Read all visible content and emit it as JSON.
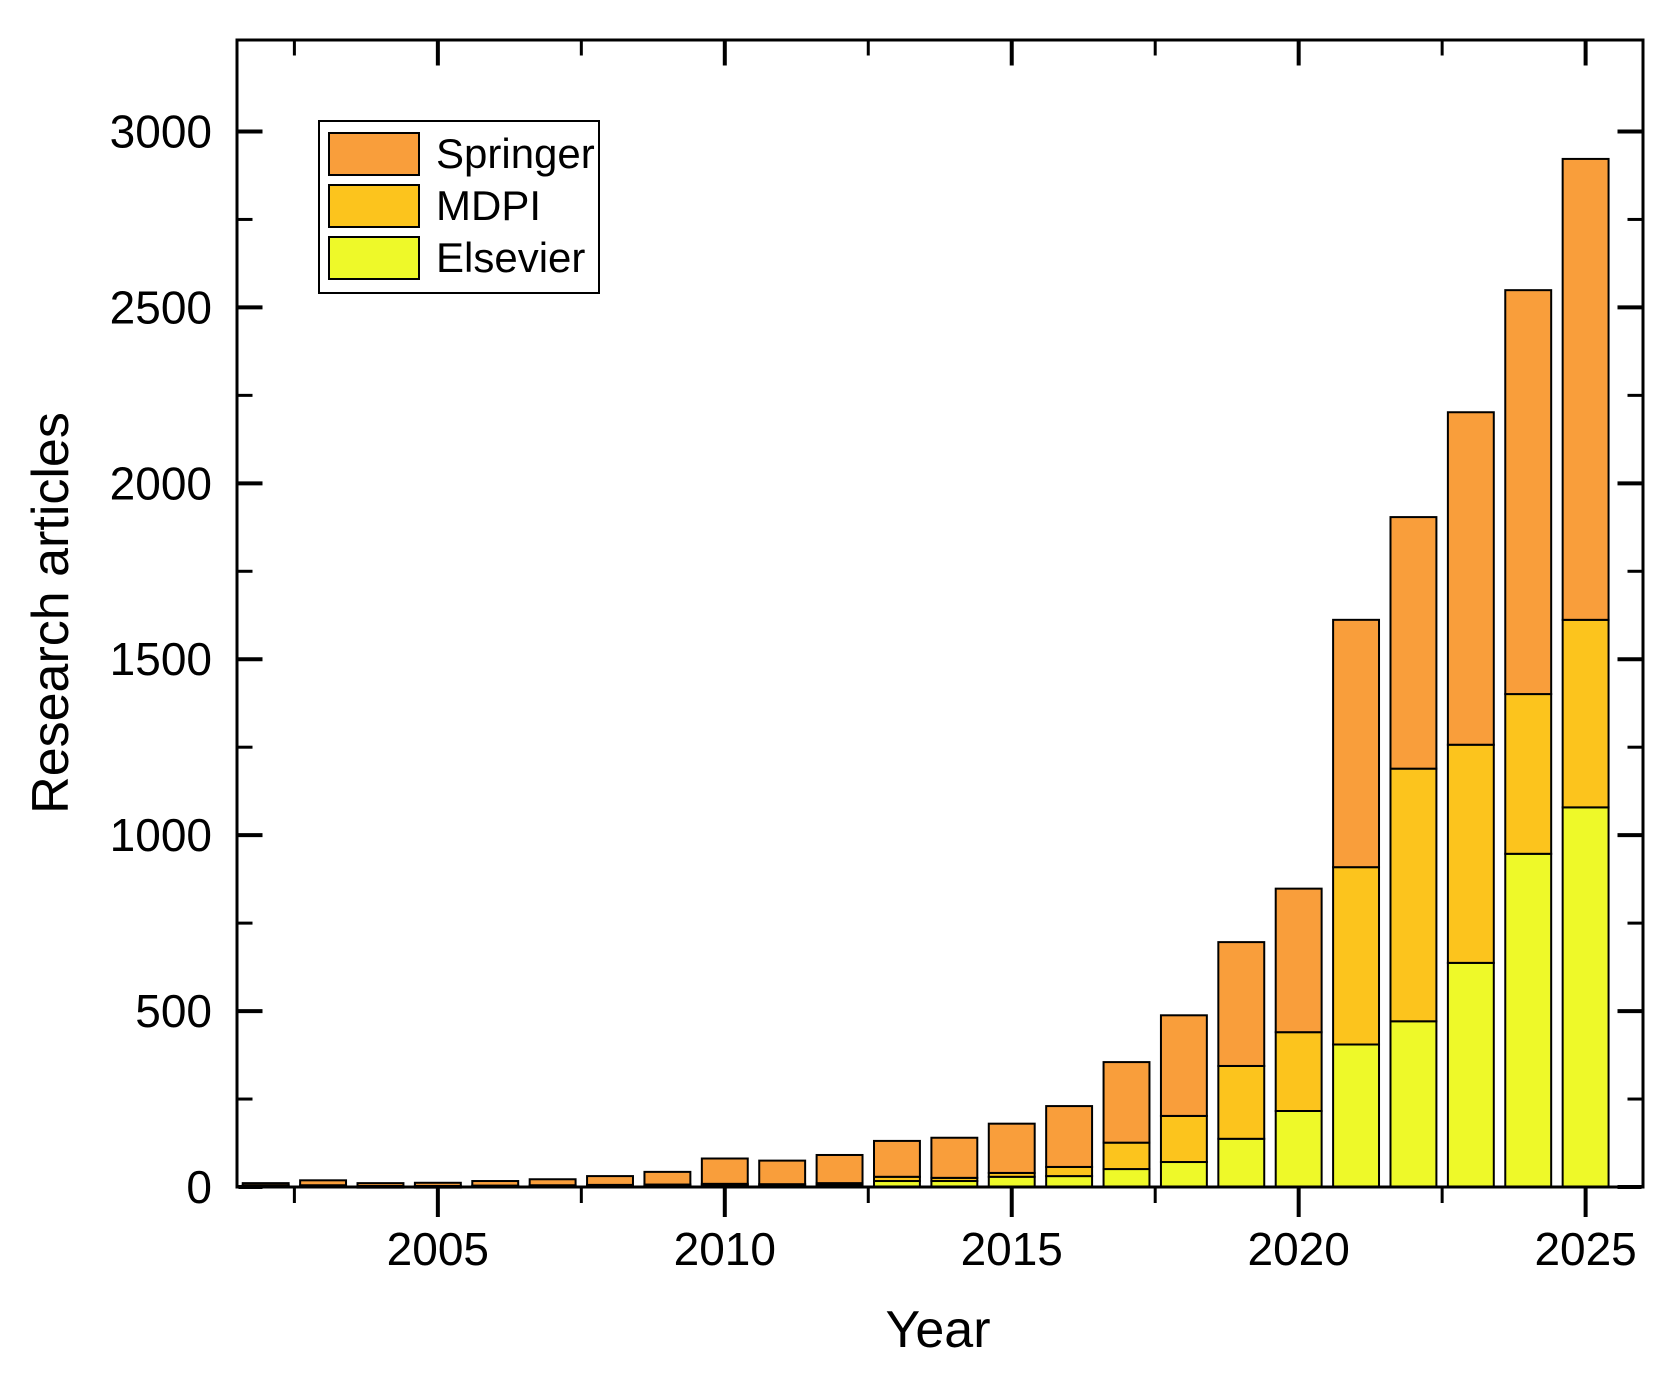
{
  "chart_data": {
    "type": "bar",
    "stacked": true,
    "title": "",
    "xlabel": "Year",
    "ylabel": "Research articles",
    "categories": [
      2002,
      2003,
      2004,
      2005,
      2006,
      2007,
      2008,
      2009,
      2010,
      2011,
      2012,
      2013,
      2014,
      2015,
      2016,
      2017,
      2018,
      2019,
      2020,
      2021,
      2022,
      2023,
      2024,
      2025
    ],
    "series": [
      {
        "name": "Elsevier",
        "color": "#EEF929",
        "values": [
          2,
          2,
          1,
          1,
          2,
          2,
          3,
          3,
          5,
          4,
          6,
          17,
          17,
          29,
          31,
          51,
          71,
          137,
          216,
          405,
          471,
          637,
          947,
          1079
        ]
      },
      {
        "name": "MDPI",
        "color": "#FCC41D",
        "values": [
          3,
          3,
          2,
          2,
          2,
          3,
          3,
          4,
          4,
          4,
          5,
          12,
          9,
          11,
          26,
          75,
          131,
          207,
          224,
          504,
          718,
          620,
          454,
          533
        ]
      },
      {
        "name": "Springer",
        "color": "#F99E3B",
        "values": [
          6,
          14,
          8,
          9,
          13,
          17,
          25,
          36,
          72,
          67,
          80,
          102,
          114,
          140,
          173,
          229,
          286,
          352,
          408,
          703,
          715,
          945,
          1148,
          1310
        ]
      }
    ],
    "legend_position": "top-left",
    "legend_order_top_to_bottom": [
      "Springer",
      "MDPI",
      "Elsevier"
    ],
    "xlim": [
      2001.5,
      2026.0
    ],
    "ylim": [
      0,
      3260
    ],
    "y_major_ticks": [
      0,
      500,
      1000,
      1500,
      2000,
      2500,
      3000
    ],
    "y_minor_ticks": [
      250,
      750,
      1250,
      1750,
      2250,
      2750
    ],
    "x_major_ticks": [
      2005,
      2010,
      2015,
      2020,
      2025
    ],
    "x_minor_ticks": [
      2002.5,
      2007.5,
      2012.5,
      2017.5,
      2022.5
    ],
    "bar_width_years": 0.8,
    "grid": false,
    "axis_color": "#000000",
    "bar_border_color": "#000000",
    "background_color": "#ffffff"
  }
}
